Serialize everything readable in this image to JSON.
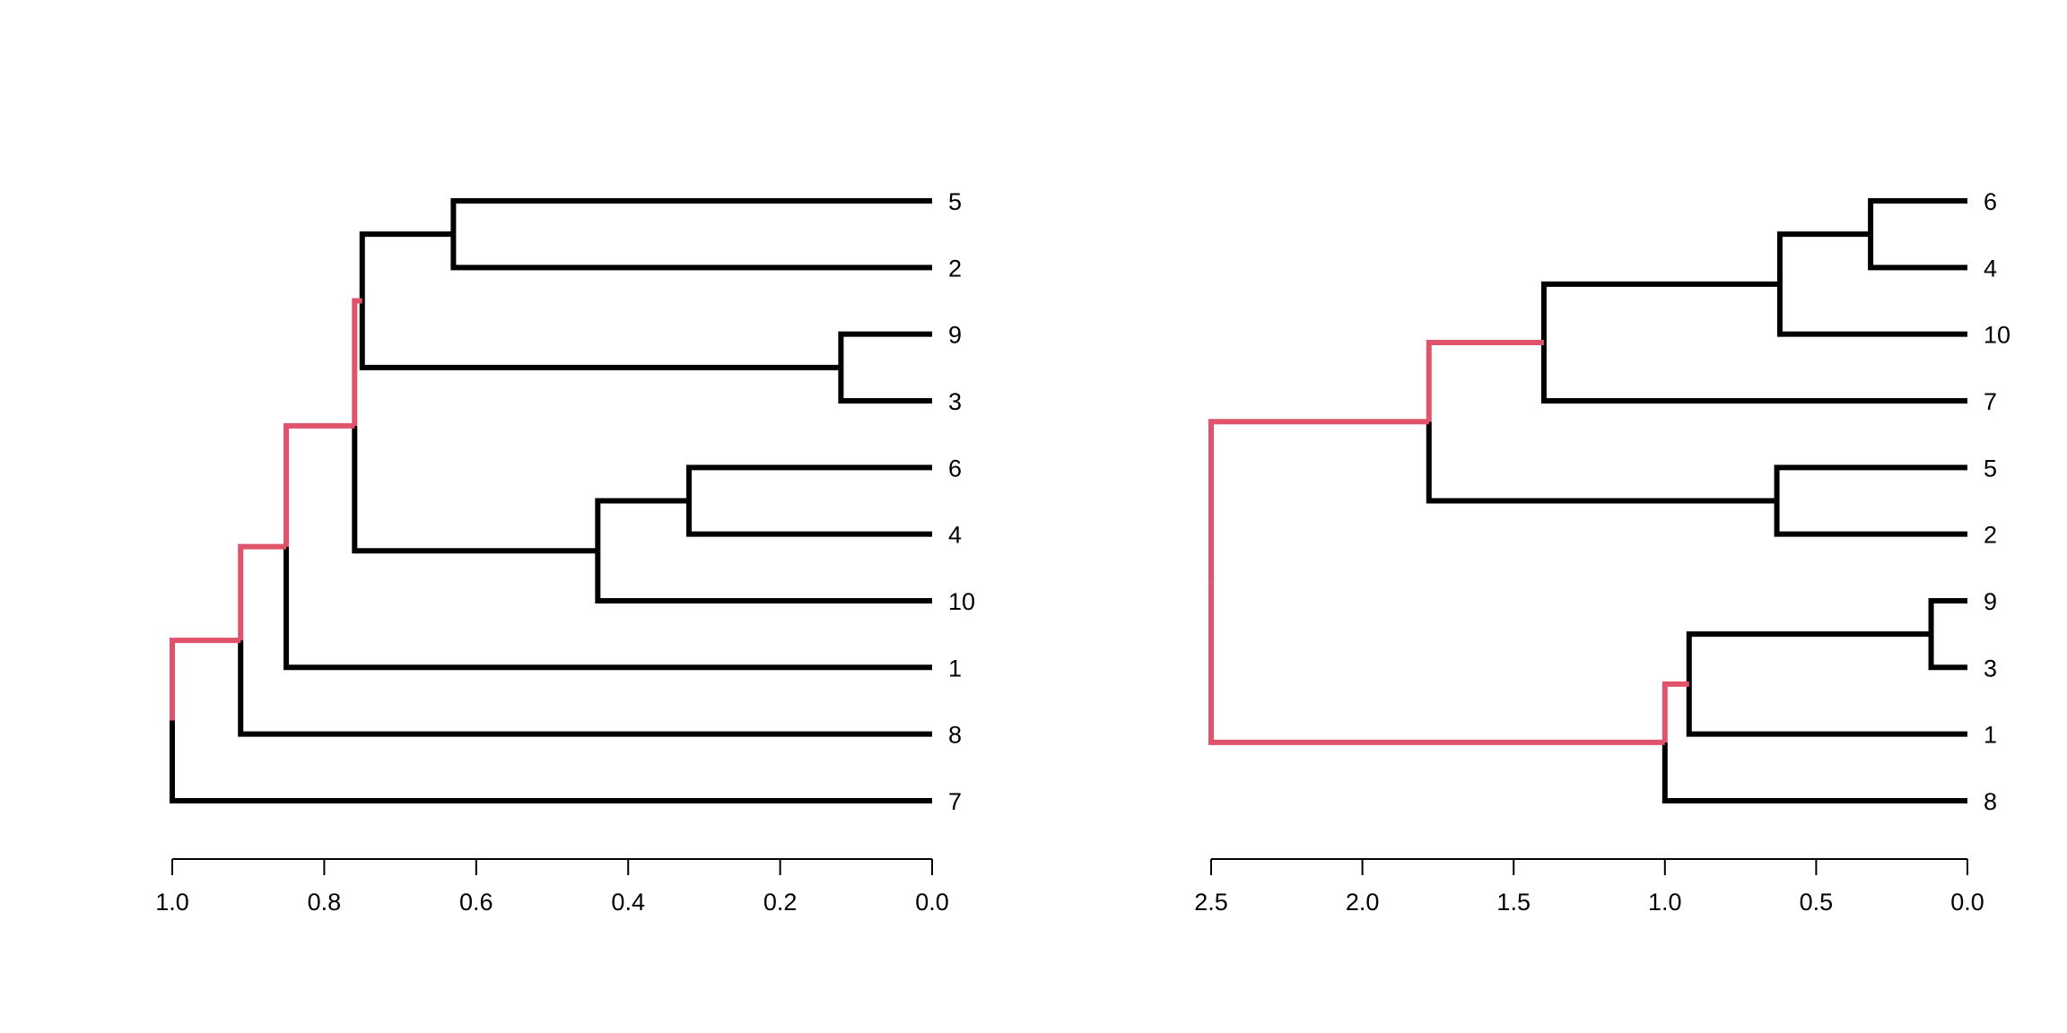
{
  "colors": {
    "tree": "#000000",
    "highlight": "#DF536B",
    "background": "#FFFFFF"
  },
  "chart_data": [
    {
      "type": "dendrogram",
      "orientation": "horizontal",
      "leaves": [
        "5",
        "2",
        "9",
        "3",
        "6",
        "4",
        "10",
        "1",
        "8",
        "7"
      ],
      "xlim": [
        1.0,
        0.0
      ],
      "ticks": [
        1.0,
        0.8,
        0.6,
        0.4,
        0.2,
        0.0
      ],
      "tick_labels": [
        "1.0",
        "0.8",
        "0.6",
        "0.4",
        "0.2",
        "0.0"
      ],
      "merges": [
        {
          "id": "m1",
          "children": [
            "9",
            "3"
          ],
          "height": 0.12
        },
        {
          "id": "m2",
          "children": [
            "6",
            "4"
          ],
          "height": 0.32
        },
        {
          "id": "m3",
          "children": [
            "m2",
            "10"
          ],
          "height": 0.44
        },
        {
          "id": "m4",
          "children": [
            "5",
            "2"
          ],
          "height": 0.63
        },
        {
          "id": "m5",
          "children": [
            "m4",
            "m1"
          ],
          "height": 0.75
        },
        {
          "id": "m6",
          "children": [
            "m5",
            "m3"
          ],
          "height": 0.76
        },
        {
          "id": "m7",
          "children": [
            "m6",
            "1"
          ],
          "height": 0.85
        },
        {
          "id": "m8",
          "children": [
            "m7",
            "8"
          ],
          "height": 0.91
        },
        {
          "id": "m9",
          "children": [
            "m8",
            "7"
          ],
          "height": 1.0
        }
      ],
      "highlighted_path": [
        "m9",
        "m8",
        "m7",
        "m6",
        "m5"
      ]
    },
    {
      "type": "dendrogram",
      "orientation": "horizontal",
      "leaves": [
        "6",
        "4",
        "10",
        "7",
        "5",
        "2",
        "9",
        "3",
        "1",
        "8"
      ],
      "xlim": [
        2.5,
        0.0
      ],
      "ticks": [
        2.5,
        2.0,
        1.5,
        1.0,
        0.5,
        0.0
      ],
      "tick_labels": [
        "2.5",
        "2.0",
        "1.5",
        "1.0",
        "0.5",
        "0.0"
      ],
      "merges": [
        {
          "id": "n1",
          "children": [
            "9",
            "3"
          ],
          "height": 0.12
        },
        {
          "id": "n2",
          "children": [
            "6",
            "4"
          ],
          "height": 0.32
        },
        {
          "id": "n3",
          "children": [
            "5",
            "2"
          ],
          "height": 0.63
        },
        {
          "id": "n4",
          "children": [
            "n2",
            "10"
          ],
          "height": 0.62
        },
        {
          "id": "n5",
          "children": [
            "n1",
            "1"
          ],
          "height": 0.92
        },
        {
          "id": "n6",
          "children": [
            "n5",
            "8"
          ],
          "height": 1.0
        },
        {
          "id": "n7",
          "children": [
            "n4",
            "7"
          ],
          "height": 1.4
        },
        {
          "id": "n8",
          "children": [
            "n7",
            "n3"
          ],
          "height": 1.78
        },
        {
          "id": "n9",
          "children": [
            "n8",
            "n6"
          ],
          "height": 2.5
        }
      ],
      "highlighted_path": [
        "n9",
        "n8",
        "n7",
        "n6",
        "n5"
      ]
    }
  ]
}
